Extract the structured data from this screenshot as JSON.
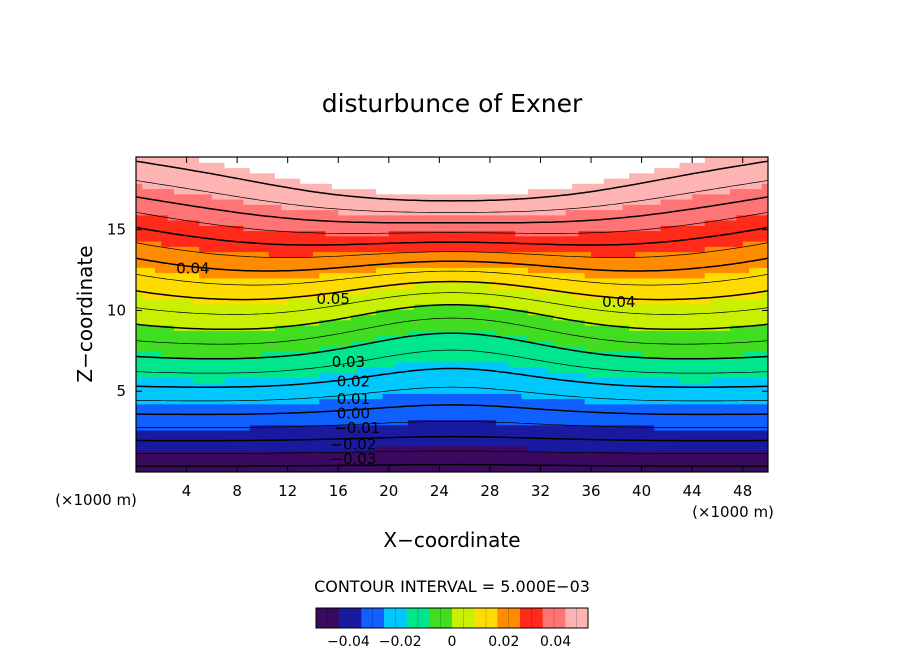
{
  "chart_data": {
    "type": "heatmap",
    "title": "disturbunce of Exner",
    "xlabel": "X−coordinate",
    "ylabel": "Z−coordinate",
    "x_unit": "(×1000 m)",
    "y_unit": "(×1000 m)",
    "xlim": [
      0,
      50
    ],
    "ylim": [
      0,
      19.5
    ],
    "x_ticks": [
      "4",
      "8",
      "12",
      "16",
      "20",
      "24",
      "28",
      "32",
      "36",
      "40",
      "44",
      "48"
    ],
    "y_ticks": [
      "5",
      "10",
      "15"
    ],
    "contour_interval_text": "CONTOUR INTERVAL = 5.000E−03",
    "contour_interval": 0.005,
    "contour_labels": [
      {
        "text": "0.05",
        "x": 15.6,
        "z": 10.4
      },
      {
        "text": "0.04",
        "x": 4.5,
        "z": 12.3
      },
      {
        "text": "0.04",
        "x": 38.2,
        "z": 10.2
      },
      {
        "text": "0.03",
        "x": 16.8,
        "z": 6.5
      },
      {
        "text": "0.02",
        "x": 17.2,
        "z": 5.3
      },
      {
        "text": "0.01",
        "x": 17.2,
        "z": 4.2
      },
      {
        "text": "0.00",
        "x": 17.2,
        "z": 3.3
      },
      {
        "text": "−0.01",
        "x": 17.5,
        "z": 2.4
      },
      {
        "text": "−0.02",
        "x": 17.2,
        "z": 1.4
      },
      {
        "text": "−0.03",
        "x": 17.2,
        "z": 0.5
      }
    ],
    "colorbar": {
      "range": [
        -0.0525,
        0.0525
      ],
      "tick_labels": [
        "−0.04",
        "−0.02",
        "0",
        "0.02",
        "0.04"
      ],
      "tick_values": [
        -0.04,
        -0.02,
        0,
        0.02,
        0.04
      ],
      "colors": [
        "#3a0a5e",
        "#1a1aa0",
        "#1060ff",
        "#00c8ff",
        "#00e68c",
        "#40dd20",
        "#c8f000",
        "#ffdc00",
        "#ff8c00",
        "#ff2a1a",
        "#ff7575",
        "#ffb4b4"
      ]
    },
    "max_region_color": "#ffffff",
    "max_region_note": "white = above 0.0525"
  }
}
